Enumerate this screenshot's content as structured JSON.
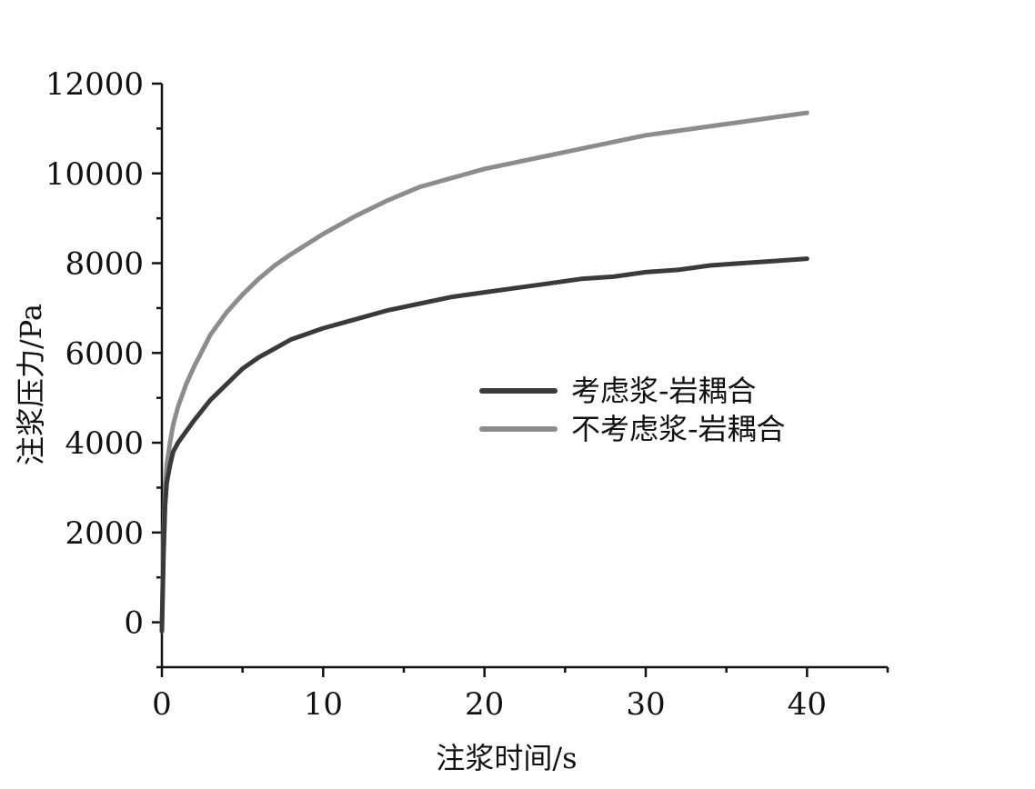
{
  "chart_data": {
    "type": "line",
    "title": "",
    "xlabel": "注浆时间/s",
    "ylabel": "注浆压力/Pa",
    "xlim": [
      0,
      45
    ],
    "ylim": [
      -1000,
      12000
    ],
    "x_ticks": [
      0,
      10,
      20,
      30,
      40
    ],
    "y_ticks": [
      0,
      2000,
      4000,
      6000,
      8000,
      10000,
      12000
    ],
    "x_tick_labels": [
      "0",
      "10",
      "20",
      "30",
      "40"
    ],
    "y_tick_labels": [
      "0",
      "2000",
      "4000",
      "6000",
      "8000",
      "10000",
      "12000"
    ],
    "grid": false,
    "legend_position": "center-right",
    "series": [
      {
        "name": "考虑浆-岩耦合",
        "color": "#3a3a3a",
        "x": [
          0,
          0.1,
          0.2,
          0.3,
          0.5,
          0.7,
          1,
          1.5,
          2,
          3,
          4,
          5,
          6,
          7,
          8,
          10,
          12,
          14,
          16,
          18,
          20,
          22,
          24,
          26,
          28,
          30,
          32,
          34,
          36,
          38,
          40
        ],
        "y": [
          -200,
          1500,
          2600,
          3100,
          3500,
          3800,
          4000,
          4250,
          4500,
          4950,
          5300,
          5650,
          5900,
          6100,
          6300,
          6550,
          6750,
          6950,
          7100,
          7250,
          7350,
          7450,
          7550,
          7650,
          7700,
          7800,
          7850,
          7950,
          8000,
          8050,
          8100
        ]
      },
      {
        "name": "不考虑浆-岩耦合",
        "color": "#8c8c8c",
        "x": [
          0,
          0.1,
          0.2,
          0.3,
          0.5,
          0.7,
          1,
          1.5,
          2,
          3,
          4,
          5,
          6,
          7,
          8,
          10,
          12,
          14,
          16,
          18,
          20,
          22,
          24,
          26,
          28,
          30,
          32,
          34,
          36,
          38,
          40
        ],
        "y": [
          -100,
          1800,
          2900,
          3500,
          4000,
          4400,
          4800,
          5300,
          5700,
          6400,
          6900,
          7300,
          7650,
          7950,
          8200,
          8650,
          9050,
          9400,
          9700,
          9900,
          10100,
          10250,
          10400,
          10550,
          10700,
          10850,
          10950,
          11050,
          11150,
          11250,
          11350
        ]
      }
    ]
  }
}
